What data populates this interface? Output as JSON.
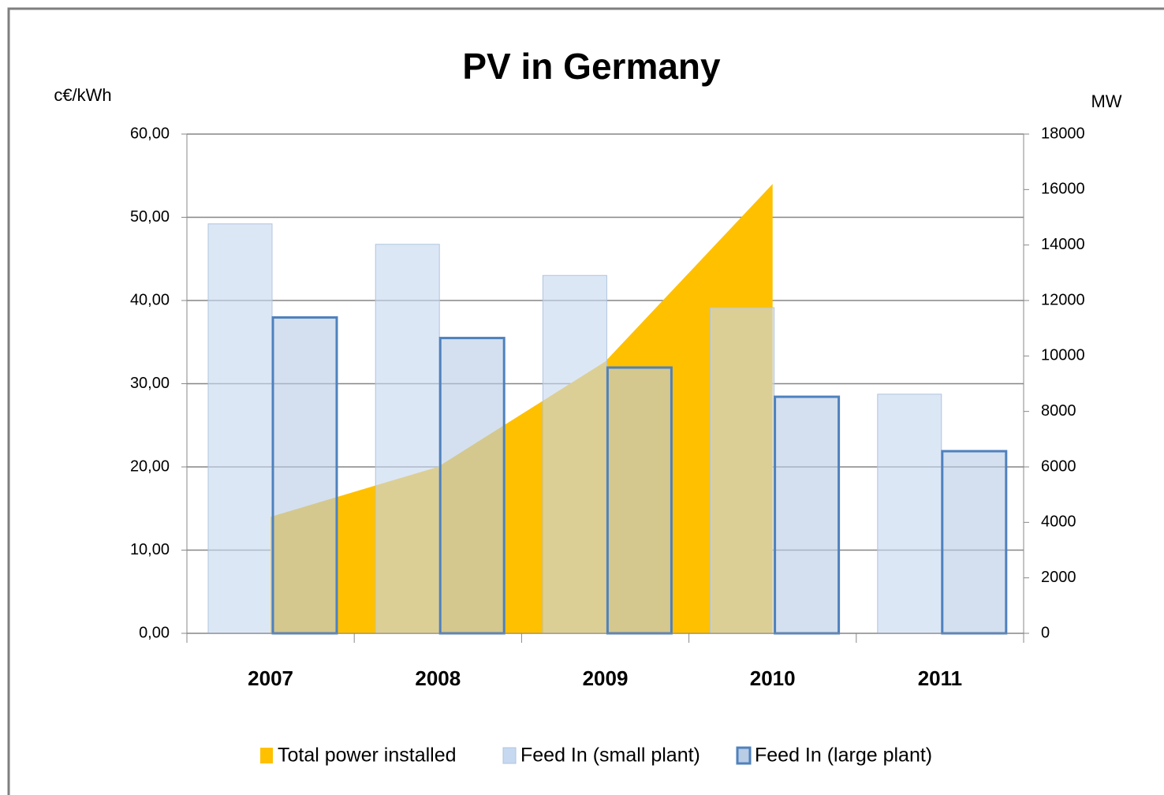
{
  "chart_data": {
    "type": "bar",
    "title": "PV in Germany",
    "ylabel": "c€/kWh",
    "y2label": "MW",
    "categories": [
      "2007",
      "2008",
      "2009",
      "2010",
      "2011"
    ],
    "series": [
      {
        "name": "Total power installed",
        "type": "area",
        "axis": "y2",
        "color": "#ffc000",
        "values": [
          4200,
          6000,
          9800,
          16200,
          null
        ]
      },
      {
        "name": "Feed In (small plant)",
        "type": "bar",
        "color": "#c6d9f1",
        "values": [
          49.21,
          46.75,
          43.01,
          39.14,
          28.74
        ]
      },
      {
        "name": "Feed In (large plant)",
        "type": "bar",
        "color": "#b9cde5",
        "edgecolor": "#4f81bd",
        "values": [
          37.96,
          35.49,
          31.94,
          28.43,
          21.89
        ]
      }
    ],
    "ylim": [
      0,
      60
    ],
    "yticks": [
      {
        "value": 0,
        "label": "0,00"
      },
      {
        "value": 10,
        "label": "10,00"
      },
      {
        "value": 20,
        "label": "20,00"
      },
      {
        "value": 30,
        "label": "30,00"
      },
      {
        "value": 40,
        "label": "40,00"
      },
      {
        "value": 50,
        "label": "50,00"
      },
      {
        "value": 60,
        "label": "60,00"
      }
    ],
    "y2lim": [
      0,
      18000
    ],
    "y2ticks": [
      0,
      2000,
      4000,
      6000,
      8000,
      10000,
      12000,
      14000,
      16000,
      18000
    ],
    "grid": true,
    "legend": "bottom"
  }
}
